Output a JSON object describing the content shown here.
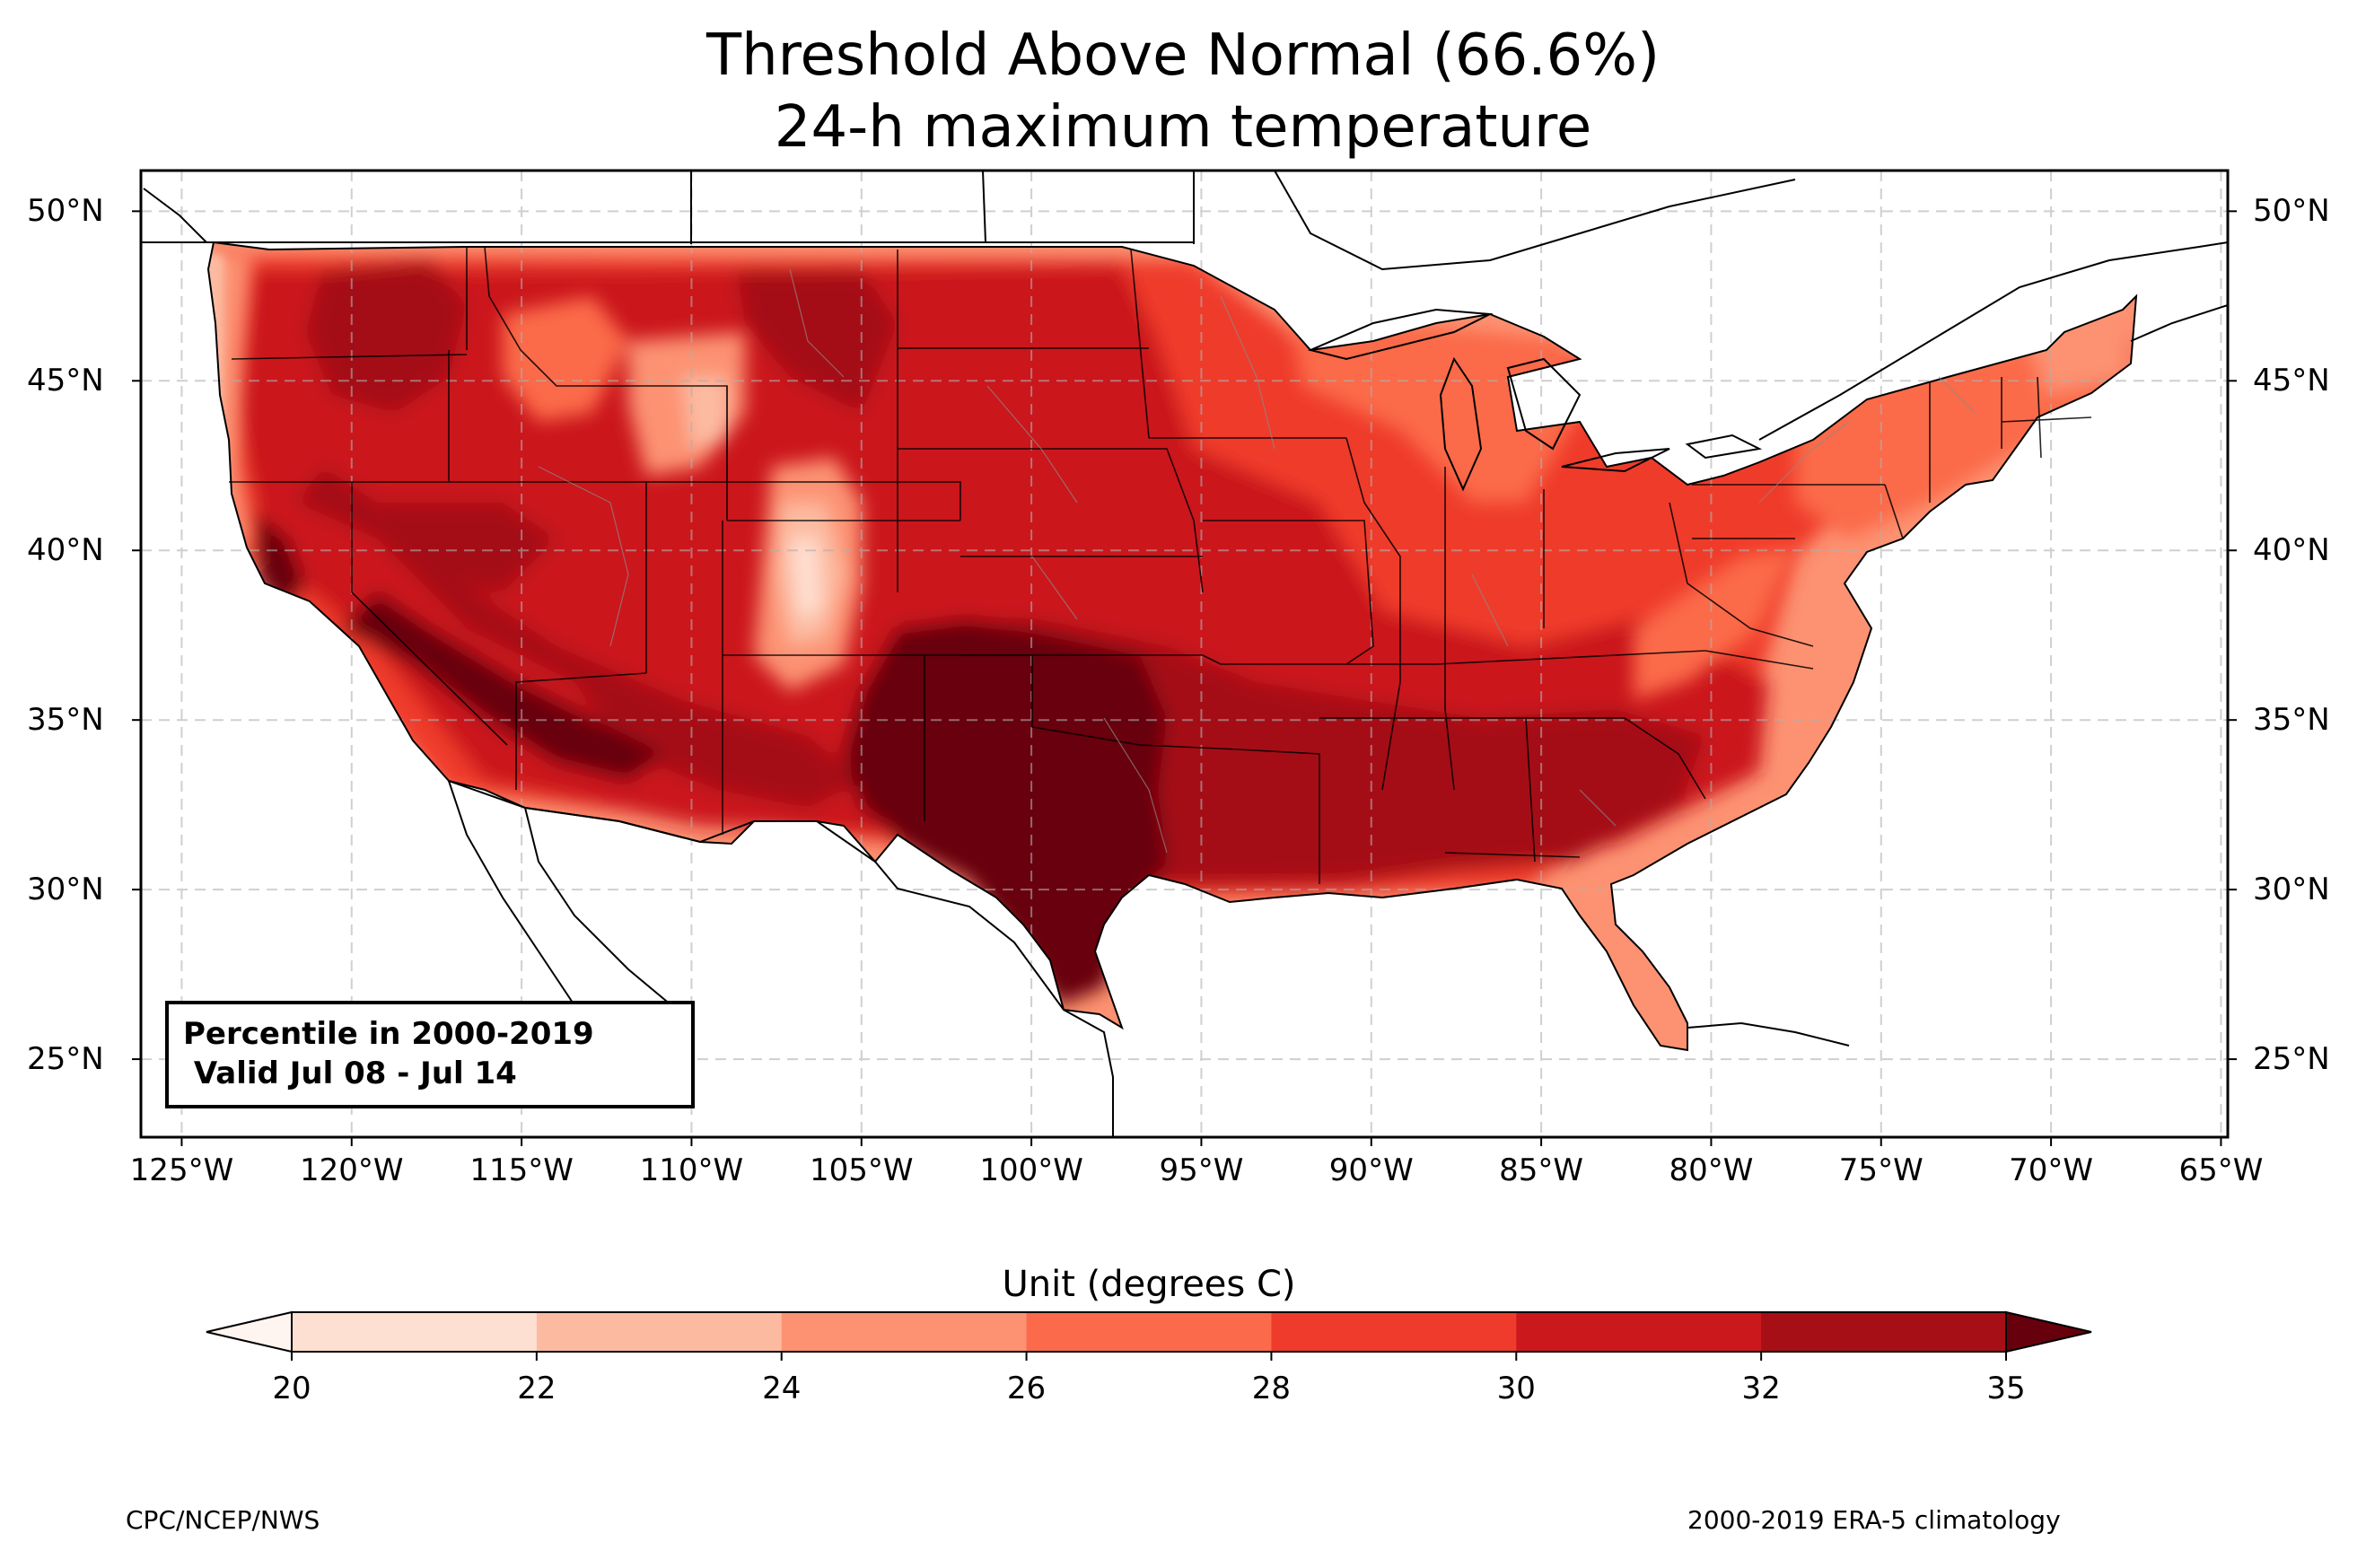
{
  "title_line1": "Threshold Above Normal (66.6%)",
  "title_line2": "24-h maximum temperature",
  "info_box": {
    "line1": "Percentile in 2000-2019",
    "line2": " Valid Jul 08 - Jul 14"
  },
  "lat_labels": [
    "50°N",
    "45°N",
    "40°N",
    "35°N",
    "30°N",
    "25°N"
  ],
  "lon_labels": [
    "125°W",
    "120°W",
    "115°W",
    "110°W",
    "105°W",
    "100°W",
    "95°W",
    "90°W",
    "85°W",
    "80°W",
    "75°W",
    "70°W",
    "65°W"
  ],
  "map_extent": {
    "lon": [
      -126.2,
      -64.8
    ],
    "lat": [
      22.7,
      51.2
    ]
  },
  "colorbar": {
    "label": "Unit (degrees C)",
    "ticks": [
      "20",
      "22",
      "24",
      "26",
      "28",
      "30",
      "32",
      "35"
    ],
    "colors": [
      "#fff5f0",
      "#fee0d2",
      "#fcbba1",
      "#fc9272",
      "#fb6a4a",
      "#ef3b2c",
      "#cb181d",
      "#a50f15",
      "#67000d"
    ],
    "extend": "both"
  },
  "footer_left": "CPC/NCEP/NWS",
  "footer_right": "2000-2019 ERA-5 climatology"
}
